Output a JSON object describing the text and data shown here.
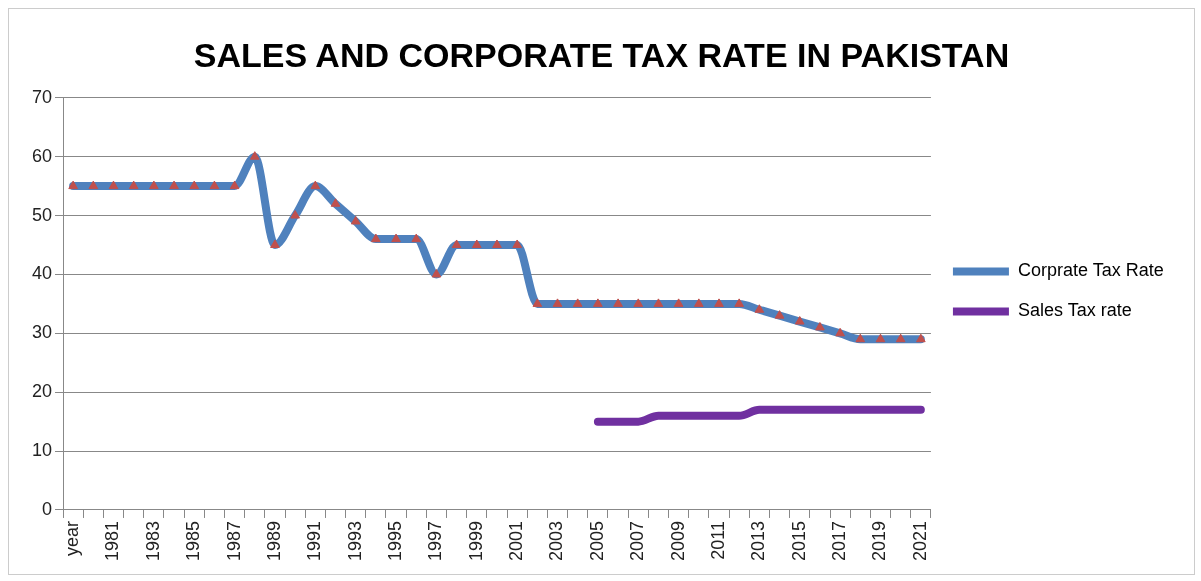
{
  "chart_data": {
    "type": "line",
    "title": "SALES AND CORPORATE TAX RATE IN PAKISTAN",
    "categories": [
      "year",
      null,
      "1981",
      null,
      "1983",
      null,
      "1985",
      null,
      "1987",
      null,
      "1989",
      null,
      "1991",
      null,
      "1993",
      null,
      "1995",
      null,
      "1997",
      null,
      "1999",
      null,
      "2001",
      null,
      "2003",
      null,
      "2005",
      null,
      "2007",
      null,
      "2009",
      null,
      "2011",
      null,
      "2013",
      null,
      "2015",
      null,
      "2017",
      null,
      "2019",
      null,
      "2021"
    ],
    "series": [
      {
        "name": "Corprate Tax Rate",
        "color": "#4f81bd",
        "marker": "triangle",
        "values": [
          55,
          55,
          55,
          55,
          55,
          55,
          55,
          55,
          55,
          60,
          45,
          50,
          55,
          52,
          49,
          46,
          46,
          46,
          40,
          45,
          45,
          45,
          45,
          35,
          35,
          35,
          35,
          35,
          35,
          35,
          35,
          35,
          35,
          35,
          34,
          33,
          32,
          31,
          30,
          29,
          29,
          29,
          29
        ]
      },
      {
        "name": "Sales Tax rate",
        "color": "#7030a0",
        "marker": "none",
        "values": [
          null,
          null,
          null,
          null,
          null,
          null,
          null,
          null,
          null,
          null,
          null,
          null,
          null,
          null,
          null,
          null,
          null,
          null,
          null,
          null,
          null,
          null,
          null,
          null,
          null,
          null,
          15,
          15,
          15,
          16,
          16,
          16,
          16,
          16,
          17,
          17,
          17,
          17,
          17,
          17,
          17,
          17,
          17
        ]
      }
    ],
    "ylim": [
      0,
      70
    ],
    "yticks": [
      0,
      10,
      20,
      30,
      40,
      50,
      60,
      70
    ],
    "grid": "y",
    "legend": "right"
  }
}
